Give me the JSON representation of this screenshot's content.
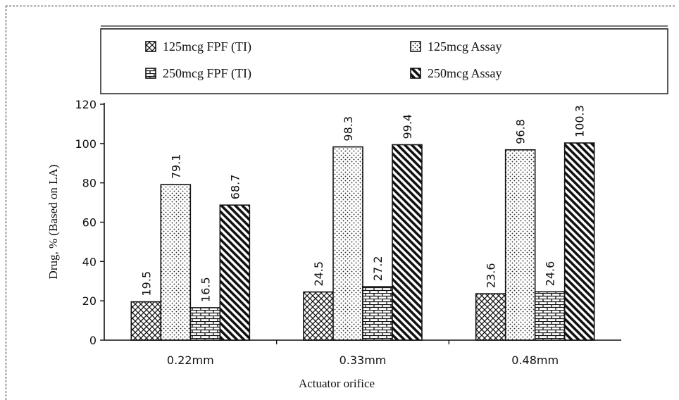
{
  "chart_data": {
    "type": "bar",
    "categories": [
      "0.22mm",
      "0.33mm",
      "0.48mm"
    ],
    "series": [
      {
        "name": "125mcg FPF (TI)",
        "pattern": "crosshatch",
        "values": [
          19.5,
          24.5,
          23.6
        ],
        "labels": [
          "19.5",
          "24.5",
          "23.6"
        ]
      },
      {
        "name": "125mcg Assay",
        "pattern": "dots",
        "values": [
          79.1,
          98.3,
          96.8
        ],
        "labels": [
          "79.1",
          "98.3",
          "96.8"
        ]
      },
      {
        "name": "250mcg FPF (TI)",
        "pattern": "brick",
        "values": [
          16.5,
          27.2,
          24.6
        ],
        "labels": [
          "16.5",
          "27.2",
          "24.6"
        ]
      },
      {
        "name": "250mcg Assay",
        "pattern": "diagonal",
        "values": [
          68.7,
          99.4,
          100.3
        ],
        "labels": [
          "68.7",
          "99.4",
          "100.3"
        ]
      }
    ],
    "xlabel": "Actuator orifice",
    "ylabel": "Drug, %  (Based on LA)",
    "ylim": [
      0,
      120
    ],
    "yticks": [
      0,
      20,
      40,
      60,
      80,
      100,
      120
    ],
    "legend_position": "top",
    "grid": false,
    "colors": {
      "ink": "#111111",
      "background": "#ffffff"
    }
  }
}
